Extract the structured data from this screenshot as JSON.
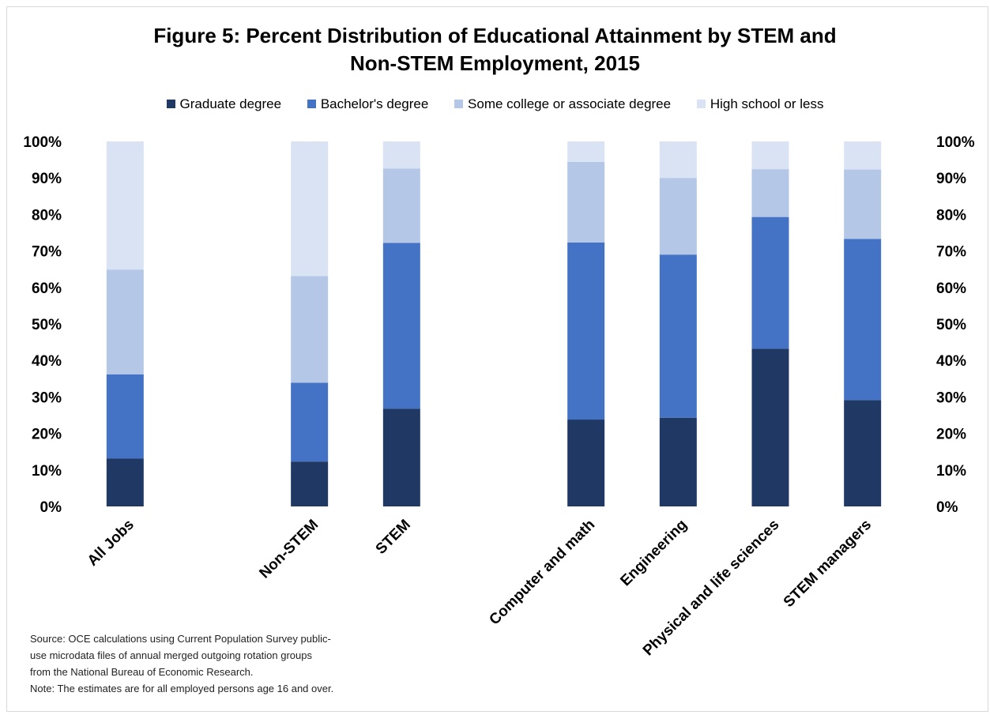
{
  "title_lines": [
    "Figure 5: Percent Distribution of Educational Attainment by STEM and",
    "Non-STEM Employment, 2015"
  ],
  "colors": {
    "Graduate degree": "#203864",
    "Bachelor's degree": "#4472c4",
    "Some college or associate degree": "#b4c7e7",
    "High school or less": "#dae3f3"
  },
  "chart_data": {
    "type": "bar",
    "stacked": true,
    "title": "Figure 5: Percent Distribution of Educational Attainment by STEM and Non-STEM Employment, 2015",
    "categories": [
      "All Jobs",
      "",
      "Non-STEM",
      "STEM",
      "",
      "Computer and math",
      "Engineering",
      "Physical and life sciences",
      "STEM managers"
    ],
    "series": [
      {
        "name": "Graduate degree",
        "values": [
          13.1,
          null,
          12.3,
          26.8,
          null,
          23.8,
          24.3,
          43.2,
          29.1
        ]
      },
      {
        "name": "Bachelor's degree",
        "values": [
          23.1,
          null,
          21.6,
          45.4,
          null,
          48.5,
          44.7,
          36.1,
          44.2
        ]
      },
      {
        "name": "Some college or associate degree",
        "values": [
          28.7,
          null,
          29.2,
          20.4,
          null,
          22.1,
          21.0,
          13.1,
          19.0
        ]
      },
      {
        "name": "High school or less",
        "values": [
          35.1,
          null,
          36.9,
          7.4,
          null,
          5.6,
          10.0,
          7.6,
          7.7
        ]
      }
    ],
    "ylim": [
      0,
      100
    ],
    "yticks": [
      "0%",
      "10%",
      "20%",
      "30%",
      "40%",
      "50%",
      "60%",
      "70%",
      "80%",
      "90%",
      "100%"
    ],
    "legend_position": "top",
    "secondary_y_axis": true,
    "grid": false
  },
  "source_lines": [
    "Source: OCE calculations using Current Population Survey public-",
    "use microdata files of annual merged outgoing rotation groups",
    "from the National Bureau of Economic Research.",
    "Note: The estimates are for all employed persons age 16 and over."
  ]
}
